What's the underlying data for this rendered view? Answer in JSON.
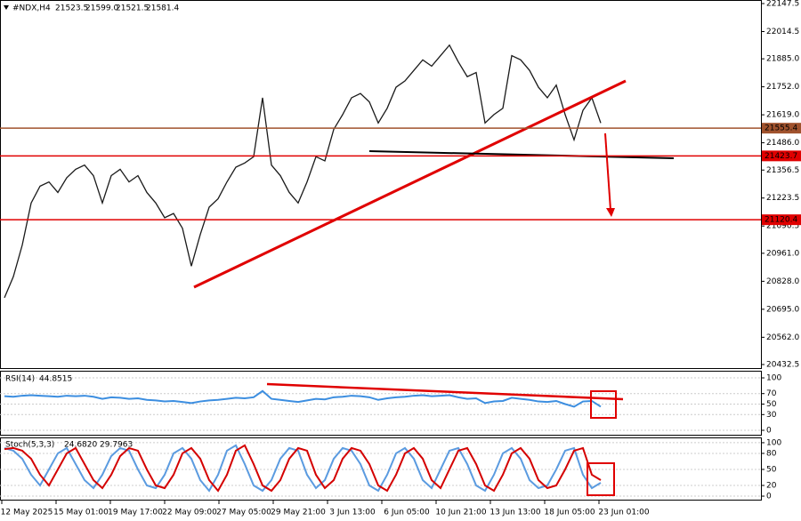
{
  "chart_data": [
    {
      "type": "line",
      "title": "#NDX,H4",
      "ohlc": [
        21523.5,
        {
          "value": 21599,
          "label": "21599.0"
        },
        21521.5,
        21581.4
      ],
      "color": "#1a1a1a",
      "values": [
        20750,
        20850,
        21000,
        21200,
        21280,
        21300,
        21250,
        21320,
        21360,
        21380,
        21330,
        21200,
        21330,
        21360,
        21300,
        21330,
        21250,
        21200,
        21130,
        21150,
        21080,
        20900,
        21050,
        21180,
        21220,
        21300,
        21370,
        21390,
        21420,
        21700,
        21380,
        21330,
        21250,
        21200,
        21300,
        21420,
        21400,
        21550,
        21620,
        21700,
        21720,
        21680,
        21580,
        21650,
        21750,
        21780,
        21830,
        21880,
        21850,
        21900,
        21950,
        21870,
        21800,
        21820,
        21580,
        21620,
        21650,
        21900,
        21880,
        21830,
        21750,
        21700,
        21760,
        21620,
        21500,
        21640,
        21700,
        21580
      ],
      "ylim": [
        20415.6,
        22164.4
      ],
      "yticks": [
        {
          "value": 22147.5,
          "label": "22147.5"
        },
        22014.5,
        {
          "value": 21885,
          "label": "21885.0"
        },
        {
          "value": 21752,
          "label": "21752.0"
        },
        {
          "value": 21619,
          "label": "21619.0"
        },
        {
          "value": 21486,
          "label": "21486.0"
        },
        21356.5,
        21223.5,
        21090.5,
        {
          "value": 20961,
          "label": "20961.0"
        },
        {
          "value": 20828,
          "label": "20828.0"
        },
        {
          "value": 20695,
          "label": "20695.0"
        },
        {
          "value": 20562,
          "label": "20562.0"
        },
        20432.5
      ],
      "levels": [
        {
          "value": 21555.4,
          "color": "#a0522d"
        },
        {
          "value": 21423.7,
          "color": "#e00000"
        },
        {
          "value": 21120.4,
          "color": "#e00000"
        }
      ],
      "x_labels": [
        "12 May 2025",
        "15 May 01:00",
        "19 May 17:00",
        "22 May 09:00",
        "27 May 05:00",
        "29 May 21:00",
        "3 Jun 13:00",
        "6 Jun 05:00",
        "10 Jun 21:00",
        "13 Jun 13:00",
        "18 Jun 05:00",
        "23 Jun 01:00"
      ]
    },
    {
      "type": "line",
      "title": "RSI(14)",
      "last_value": 44.8515,
      "color": "#3c8ee0",
      "values": [
        65,
        64,
        66,
        67,
        66,
        65,
        64,
        66,
        65,
        66,
        64,
        60,
        63,
        62,
        60,
        61,
        58,
        57,
        55,
        56,
        54,
        52,
        55,
        57,
        58,
        60,
        62,
        61,
        63,
        75,
        60,
        58,
        56,
        54,
        57,
        60,
        59,
        63,
        64,
        66,
        65,
        63,
        58,
        61,
        63,
        64,
        66,
        67,
        65,
        66,
        67,
        63,
        60,
        61,
        52,
        55,
        56,
        62,
        60,
        58,
        55,
        54,
        56,
        50,
        45,
        55,
        56,
        45
      ],
      "ylim": [
        -10.2,
        111.9
      ],
      "yticks": [
        100,
        70,
        50,
        30,
        0
      ]
    },
    {
      "type": "line",
      "title": "Stoch(5,3,3)",
      "last_values": [
        {
          "value": 24.682,
          "label": "24.6820"
        },
        {
          "value": 29.7963,
          "label": "29.7963"
        }
      ],
      "series": [
        {
          "color": "#5b9be0",
          "values": [
            90,
            85,
            70,
            40,
            20,
            50,
            80,
            90,
            60,
            30,
            15,
            40,
            75,
            90,
            85,
            50,
            20,
            15,
            40,
            80,
            90,
            70,
            30,
            10,
            40,
            85,
            95,
            60,
            20,
            10,
            30,
            70,
            90,
            85,
            40,
            15,
            30,
            70,
            90,
            85,
            60,
            20,
            10,
            40,
            80,
            90,
            70,
            30,
            15,
            50,
            85,
            90,
            60,
            20,
            10,
            40,
            80,
            90,
            70,
            30,
            15,
            20,
            50,
            85,
            90,
            40,
            15,
            25
          ]
        },
        {
          "color": "#d40000",
          "values": [
            88,
            90,
            85,
            70,
            40,
            20,
            50,
            80,
            90,
            60,
            30,
            15,
            40,
            75,
            90,
            85,
            50,
            20,
            15,
            40,
            80,
            90,
            70,
            30,
            10,
            40,
            85,
            95,
            60,
            20,
            10,
            30,
            70,
            90,
            85,
            40,
            15,
            30,
            70,
            90,
            85,
            60,
            20,
            10,
            40,
            80,
            90,
            70,
            30,
            15,
            50,
            85,
            90,
            60,
            20,
            10,
            40,
            80,
            90,
            70,
            30,
            15,
            20,
            50,
            85,
            90,
            40,
            30
          ]
        }
      ],
      "ylim": [
        -6.6,
        108.2
      ],
      "yticks": [
        100,
        80,
        50,
        20,
        0
      ]
    }
  ]
}
